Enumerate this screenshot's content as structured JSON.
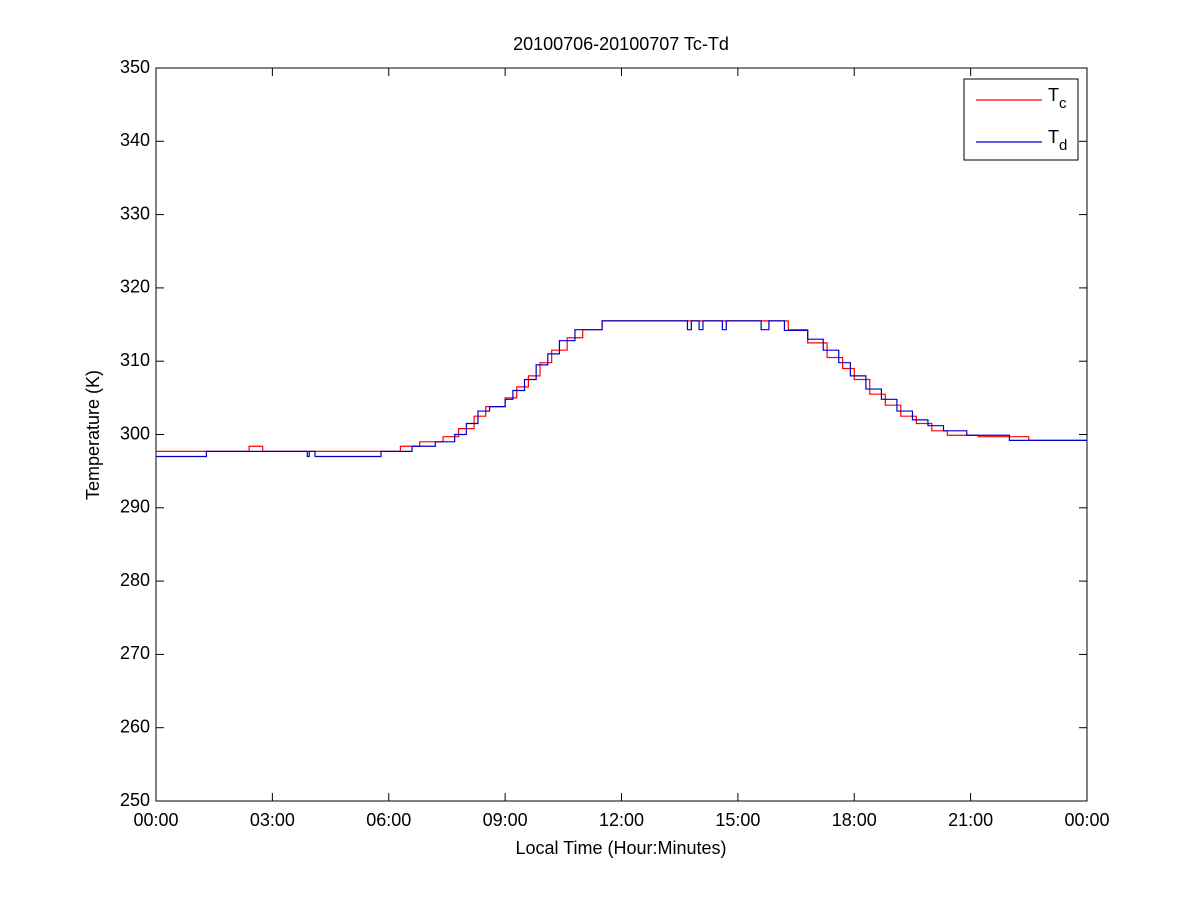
{
  "chart_data": {
    "type": "line",
    "title": "20100706-20100707 Tc-Td",
    "x_label": "Local Time (Hour:Minutes)",
    "y_label": "Temperature (K)",
    "xlim": [
      0,
      24
    ],
    "ylim": [
      250,
      350
    ],
    "xticks": [
      {
        "value": 0,
        "label": "00:00"
      },
      {
        "value": 3,
        "label": "03:00"
      },
      {
        "value": 6,
        "label": "06:00"
      },
      {
        "value": 9,
        "label": "09:00"
      },
      {
        "value": 12,
        "label": "12:00"
      },
      {
        "value": 15,
        "label": "15:00"
      },
      {
        "value": 18,
        "label": "18:00"
      },
      {
        "value": 21,
        "label": "21:00"
      },
      {
        "value": 24,
        "label": "00:00"
      }
    ],
    "yticks": [
      250,
      260,
      270,
      280,
      290,
      300,
      310,
      320,
      330,
      340,
      350
    ],
    "legend": "upper-right",
    "series": [
      {
        "name": "Tc",
        "color": "#ff0000",
        "x": [
          0,
          2.4,
          2.4,
          2.75,
          2.75,
          6.3,
          6.3,
          6.8,
          6.8,
          7.4,
          7.4,
          7.8,
          7.8,
          8.2,
          8.2,
          8.5,
          8.5,
          9.0,
          9.0,
          9.3,
          9.3,
          9.6,
          9.6,
          9.9,
          9.9,
          10.2,
          10.2,
          10.6,
          10.6,
          11.0,
          11.0,
          11.5,
          11.5,
          16.3,
          16.3,
          16.8,
          16.8,
          17.3,
          17.3,
          17.7,
          17.7,
          18.0,
          18.0,
          18.4,
          18.4,
          18.8,
          18.8,
          19.2,
          19.2,
          19.6,
          19.6,
          20.0,
          20.0,
          20.4,
          20.4,
          21.2,
          21.2,
          22.5,
          22.5,
          24
        ],
        "values": [
          297.7,
          297.7,
          298.4,
          298.4,
          297.7,
          297.7,
          298.4,
          298.4,
          299.0,
          299.0,
          299.7,
          299.7,
          300.8,
          300.8,
          302.5,
          302.5,
          303.8,
          303.8,
          305.0,
          305.0,
          306.5,
          306.5,
          308.0,
          308.0,
          309.8,
          309.8,
          311.5,
          311.5,
          313.2,
          313.2,
          314.3,
          314.3,
          315.5,
          315.5,
          314.3,
          314.3,
          312.5,
          312.5,
          310.5,
          310.5,
          309.0,
          309.0,
          307.5,
          307.5,
          305.5,
          305.5,
          304.0,
          304.0,
          302.5,
          302.5,
          301.5,
          301.5,
          300.5,
          300.5,
          299.9,
          299.9,
          299.7,
          299.7,
          299.2,
          299.2
        ]
      },
      {
        "name": "Td",
        "color": "#0000cc",
        "x": [
          0,
          1.3,
          1.3,
          3.9,
          3.9,
          3.95,
          3.95,
          4.1,
          4.1,
          5.8,
          5.8,
          6.6,
          6.6,
          7.2,
          7.2,
          7.7,
          7.7,
          8.0,
          8.0,
          8.3,
          8.3,
          8.6,
          8.6,
          9.0,
          9.0,
          9.2,
          9.2,
          9.5,
          9.5,
          9.8,
          9.8,
          10.1,
          10.1,
          10.4,
          10.4,
          10.8,
          10.8,
          11.5,
          11.5,
          13.7,
          13.7,
          13.8,
          13.8,
          14.0,
          14.0,
          14.1,
          14.1,
          14.6,
          14.6,
          14.7,
          14.7,
          15.6,
          15.6,
          15.8,
          15.8,
          16.2,
          16.2,
          16.8,
          16.8,
          17.2,
          17.2,
          17.6,
          17.6,
          17.9,
          17.9,
          18.3,
          18.3,
          18.7,
          18.7,
          19.1,
          19.1,
          19.5,
          19.5,
          19.9,
          19.9,
          20.3,
          20.3,
          20.9,
          20.9,
          22.0,
          22.0,
          24
        ],
        "values": [
          297.0,
          297.0,
          297.7,
          297.7,
          297.0,
          297.0,
          297.7,
          297.7,
          297.0,
          297.0,
          297.7,
          297.7,
          298.4,
          298.4,
          299.0,
          299.0,
          300.0,
          300.0,
          301.5,
          301.5,
          303.2,
          303.2,
          303.8,
          303.8,
          304.8,
          304.8,
          306.0,
          306.0,
          307.5,
          307.5,
          309.5,
          309.5,
          311.0,
          311.0,
          312.8,
          312.8,
          314.3,
          314.3,
          315.5,
          315.5,
          314.3,
          314.3,
          315.5,
          315.5,
          314.3,
          314.3,
          315.5,
          315.5,
          314.3,
          314.3,
          315.5,
          315.5,
          314.3,
          314.3,
          315.5,
          315.5,
          314.2,
          314.2,
          313.0,
          313.0,
          311.5,
          311.5,
          309.8,
          309.8,
          308.0,
          308.0,
          306.2,
          306.2,
          304.8,
          304.8,
          303.2,
          303.2,
          302.0,
          302.0,
          301.2,
          301.2,
          300.5,
          300.5,
          299.9,
          299.9,
          299.2,
          299.2
        ]
      }
    ]
  }
}
